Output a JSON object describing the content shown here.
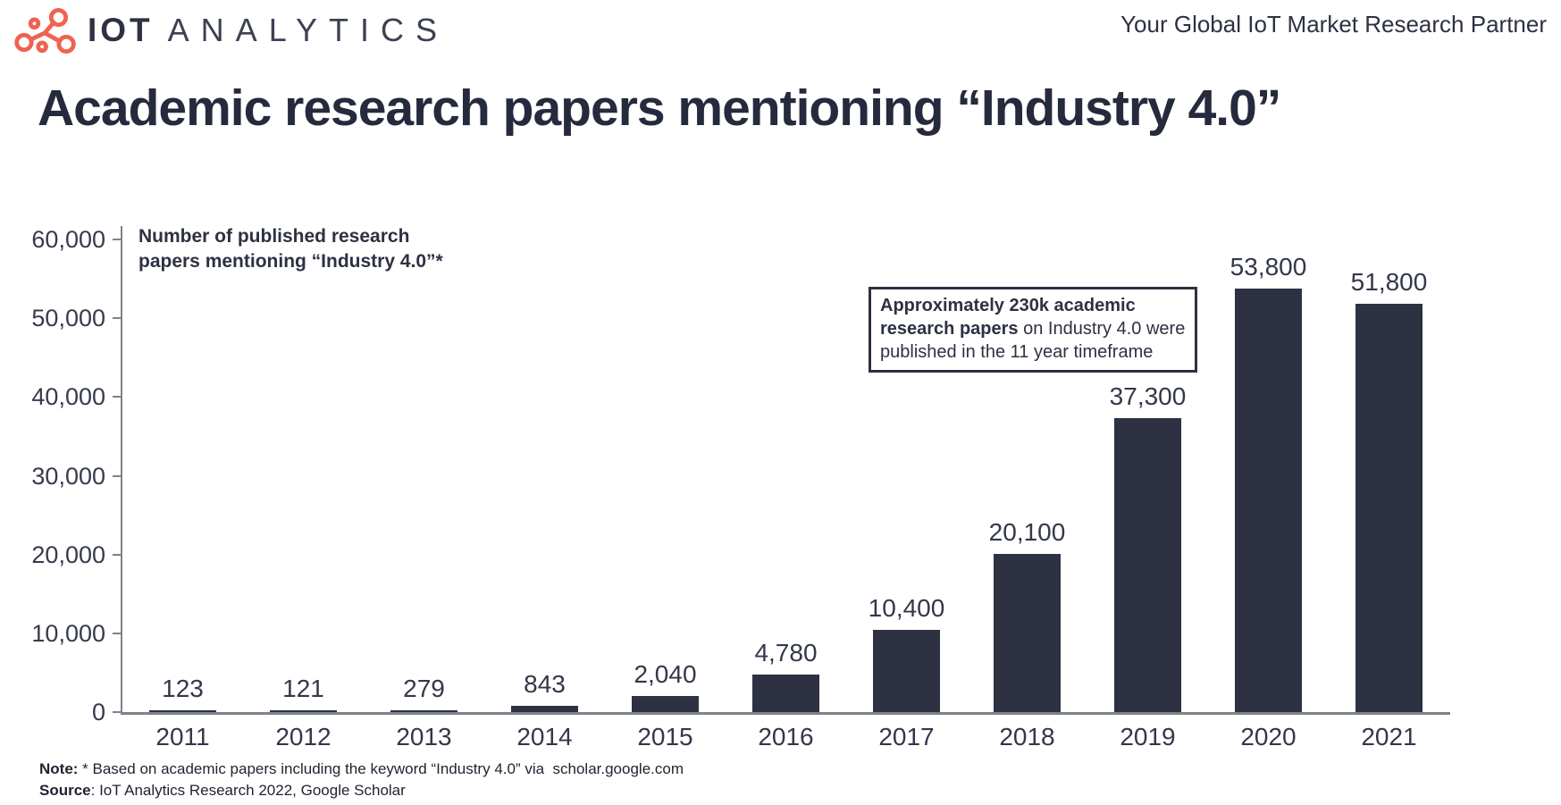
{
  "header": {
    "logo": {
      "icon": "molecule-network-icon",
      "icon_color": "#ee6352",
      "brand_bold": "IOT",
      "brand_light": "ANALYTICS"
    },
    "tagline": "Your Global IoT Market Research Partner"
  },
  "title": "Academic research papers mentioning “Industry 4.0”",
  "chart_data": {
    "type": "bar",
    "title": "Academic research papers mentioning “Industry 4.0”",
    "series_label": "Number of published research\npapers mentioning “Industry 4.0”*",
    "categories": [
      "2011",
      "2012",
      "2013",
      "2014",
      "2015",
      "2016",
      "2017",
      "2018",
      "2019",
      "2020",
      "2021"
    ],
    "values": [
      123,
      121,
      279,
      843,
      2040,
      4780,
      10400,
      20100,
      37300,
      53800,
      51800
    ],
    "value_labels": [
      "123",
      "121",
      "279",
      "843",
      "2,040",
      "4,780",
      "10,400",
      "20,100",
      "37,300",
      "53,800",
      "51,800"
    ],
    "xlabel": "",
    "ylabel": "",
    "ylim": [
      0,
      60000
    ],
    "ytick_values": [
      60000,
      50000,
      40000,
      30000,
      20000,
      10000,
      0
    ],
    "ytick_labels": [
      "60,000",
      "50,000",
      "40,000",
      "30,000",
      "20,000",
      "10,000",
      "0"
    ],
    "grid": false,
    "legend_position": "none",
    "bar_color": "#2d3142",
    "axis_color": "#7d828a"
  },
  "annotation": {
    "bold": "Approximately 230k academic research papers",
    "rest": " on Industry 4.0 were published in the 11 year timeframe"
  },
  "footer": {
    "note_label": "Note:",
    "note_text": " * Based on academic papers including the keyword “Industry 4.0” via  scholar.google.com",
    "source_label": "Source",
    "source_text": ": IoT Analytics Research 2022, Google Scholar"
  }
}
